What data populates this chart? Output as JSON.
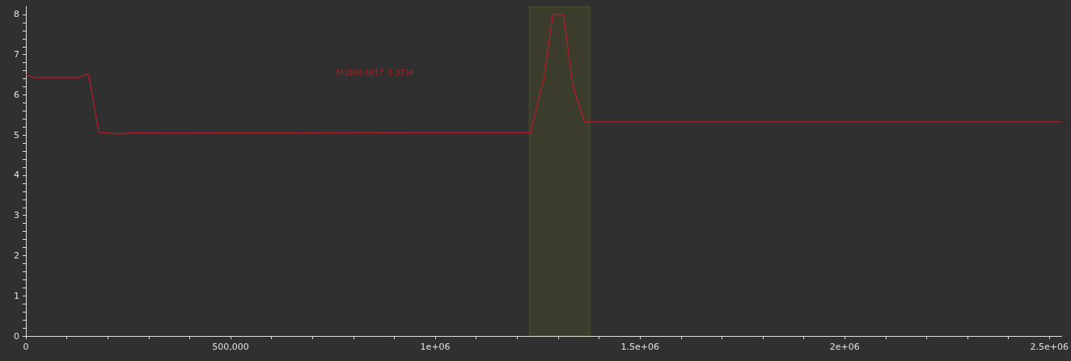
{
  "chart_data": {
    "type": "line",
    "x": [
      0,
      23500,
      127000,
      153000,
      178000,
      221000,
      261000,
      1232000,
      1265000,
      1287000,
      1313000,
      1336000,
      1364000,
      2530000
    ],
    "series": [
      {
        "color": "#b01c24",
        "values": [
          6.5,
          6.43,
          6.43,
          6.52,
          5.07,
          5.03,
          5.05,
          5.06,
          6.39,
          8.0,
          8.0,
          6.23,
          5.33,
          5.33
        ]
      }
    ],
    "xlim": [
      0,
      2530000
    ],
    "xticks": [
      0,
      {
        "value": 100000,
        "label": null
      },
      {
        "value": 200000,
        "label": null
      },
      {
        "value": 300000,
        "label": null
      },
      {
        "value": 400000,
        "label": null
      },
      {
        "value": 500000,
        "label": "500,000"
      },
      {
        "value": 600000,
        "label": null
      },
      {
        "value": 700000,
        "label": null
      },
      {
        "value": 800000,
        "label": null
      },
      {
        "value": 900000,
        "label": null
      },
      {
        "value": 1000000,
        "label": "1e+06"
      },
      {
        "value": 1100000,
        "label": null
      },
      {
        "value": 1200000,
        "label": null
      },
      {
        "value": 1300000,
        "label": null
      },
      {
        "value": 1400000,
        "label": null
      },
      {
        "value": 1500000,
        "label": "1.5e+06"
      },
      {
        "value": 1600000,
        "label": null
      },
      {
        "value": 1700000,
        "label": null
      },
      {
        "value": 1800000,
        "label": null
      },
      {
        "value": 1900000,
        "label": null
      },
      {
        "value": 2000000,
        "label": "2e+06"
      },
      {
        "value": 2100000,
        "label": null
      },
      {
        "value": 2200000,
        "label": null
      },
      {
        "value": 2300000,
        "label": null
      },
      {
        "value": 2400000,
        "label": null
      },
      {
        "value": 2500000,
        "label": "2.5e+06"
      }
    ],
    "ylim": [
      0,
      8.2
    ],
    "yticks": [
      0,
      {
        "value": 0.2,
        "label": null
      },
      {
        "value": 0.4,
        "label": null
      },
      {
        "value": 0.6,
        "label": null
      },
      {
        "value": 0.8,
        "label": null
      },
      1,
      {
        "value": 1.2,
        "label": null
      },
      {
        "value": 1.4,
        "label": null
      },
      {
        "value": 1.6,
        "label": null
      },
      {
        "value": 1.8,
        "label": null
      },
      2,
      {
        "value": 2.2,
        "label": null
      },
      {
        "value": 2.4,
        "label": null
      },
      {
        "value": 2.6,
        "label": null
      },
      {
        "value": 2.8,
        "label": null
      },
      3,
      {
        "value": 3.2,
        "label": null
      },
      {
        "value": 3.4,
        "label": null
      },
      {
        "value": 3.6,
        "label": null
      },
      {
        "value": 3.8,
        "label": null
      },
      4,
      {
        "value": 4.2,
        "label": null
      },
      {
        "value": 4.4,
        "label": null
      },
      {
        "value": 4.6,
        "label": null
      },
      {
        "value": 4.8,
        "label": null
      },
      5,
      {
        "value": 5.2,
        "label": null
      },
      {
        "value": 5.4,
        "label": null
      },
      {
        "value": 5.6,
        "label": null
      },
      {
        "value": 5.8,
        "label": null
      },
      6,
      {
        "value": 6.2,
        "label": null
      },
      {
        "value": 6.4,
        "label": null
      },
      {
        "value": 6.6,
        "label": null
      },
      {
        "value": 6.8,
        "label": null
      },
      7,
      {
        "value": 7.2,
        "label": null
      },
      {
        "value": 7.4,
        "label": null
      },
      {
        "value": 7.6,
        "label": null
      },
      {
        "value": 7.8,
        "label": null
      },
      8
    ],
    "bands": [
      {
        "axis": "x",
        "from": 1230000,
        "to": 1377000,
        "color": "#ffff00"
      }
    ],
    "annotations": [
      "743909.0417, 6.3734"
    ],
    "grid": false,
    "marker": "none",
    "line_style": "solid"
  }
}
